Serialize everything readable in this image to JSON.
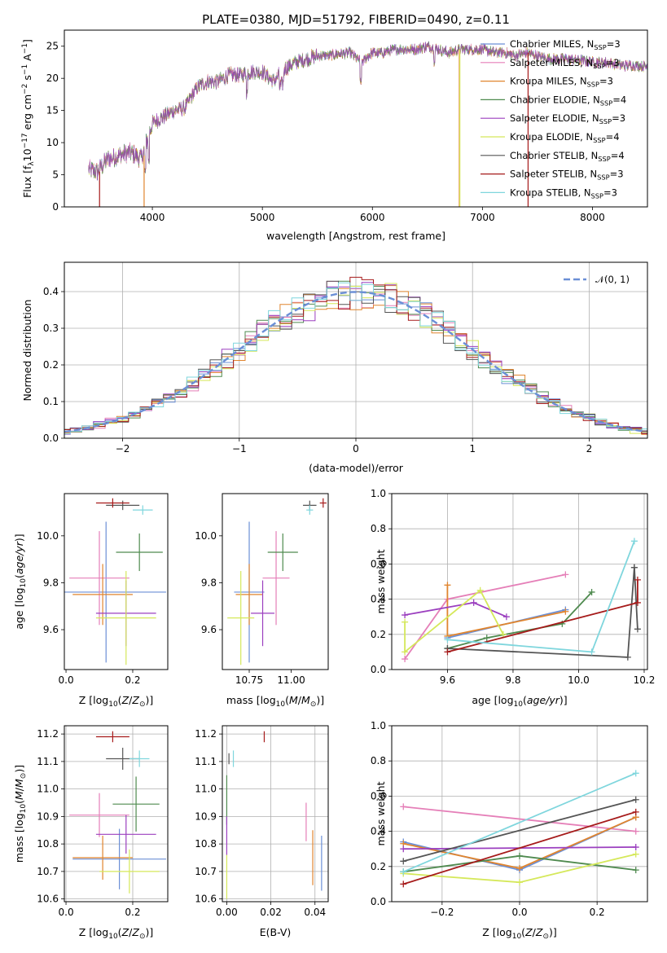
{
  "figure": {
    "title": "PLATE=0380, MJD=51792, FIBERID=0490, z=0.11",
    "colors": {
      "Chabrier MILES": "#6b8fd6",
      "Salpeter MILES": "#e57fb8",
      "Kroupa MILES": "#e0852f",
      "Chabrier ELODIE": "#4f8a4f",
      "Salpeter ELODIE": "#9b3fbf",
      "Kroupa ELODIE": "#d5e85a",
      "Chabrier STELIB": "#555555",
      "Salpeter STELIB": "#a61b1b",
      "Kroupa STELIB": "#7fd6dd"
    }
  },
  "chart_data": [
    {
      "id": "spectrum",
      "type": "line",
      "xlabel": "wavelength [Angstrom, rest frame]",
      "ylabel": "Flux [f_λ10^-17 erg cm^-2 s^-1 A^-1]",
      "xlim": [
        3200,
        8500
      ],
      "ylim": [
        0,
        27.5
      ],
      "xticks": [
        4000,
        5000,
        6000,
        7000,
        8000
      ],
      "yticks": [
        0,
        5,
        10,
        15,
        20,
        25
      ],
      "legend": "top-right",
      "legend_entries": [
        "Chabrier MILES, N_SSP=3",
        "Salpeter MILES, N_SSP=3",
        "Kroupa MILES, N_SSP=3",
        "Chabrier ELODIE, N_SSP=4",
        "Salpeter ELODIE, N_SSP=3",
        "Kroupa ELODIE, N_SSP=4",
        "Chabrier STELIB, N_SSP=4",
        "Salpeter STELIB, N_SSP=3",
        "Kroupa STELIB, N_SSP=3"
      ],
      "envelope": {
        "x": [
          3420,
          3500,
          3600,
          3700,
          3800,
          3900,
          4000,
          4100,
          4200,
          4300,
          4400,
          4500,
          4600,
          4700,
          4800,
          4900,
          5000,
          5100,
          5200,
          5300,
          5400,
          5500,
          5600,
          5700,
          5800,
          5900,
          6000,
          6100,
          6200,
          6300,
          6400,
          6500,
          6600,
          6700,
          6800,
          6900,
          7000,
          7100,
          7200,
          7300,
          7400,
          7500,
          7600,
          7700,
          7800,
          7900,
          8000,
          8100,
          8200,
          8300,
          8400,
          8500
        ],
        "y": [
          5.8,
          5.5,
          7.5,
          8.0,
          8.5,
          7.5,
          13.0,
          14.0,
          15.0,
          15.5,
          18.5,
          19.5,
          19.5,
          20.5,
          20.5,
          21.0,
          21.0,
          19.5,
          21.5,
          22.5,
          23.0,
          23.5,
          23.5,
          23.8,
          24.0,
          22.5,
          24.0,
          24.0,
          24.5,
          24.5,
          24.5,
          25.0,
          24.5,
          24.0,
          24.5,
          24.5,
          24.5,
          24.0,
          24.0,
          23.5,
          24.0,
          23.5,
          23.0,
          23.0,
          23.0,
          22.8,
          22.5,
          22.5,
          22.2,
          22.0,
          22.0,
          21.8
        ]
      }
    },
    {
      "id": "residuals",
      "type": "line",
      "xlabel": "(data-model)/error",
      "ylabel": "Normed distribution",
      "xlim": [
        -2.5,
        2.5
      ],
      "ylim": [
        0,
        0.48
      ],
      "xticks": [
        -2,
        -1,
        0,
        1,
        2
      ],
      "yticks": [
        0.0,
        0.1,
        0.2,
        0.3,
        0.4
      ],
      "grid": true,
      "legend": "top-right",
      "legend_entries": [
        "𝒩(0, 1)"
      ]
    },
    {
      "id": "age-vs-Z",
      "type": "scatter",
      "xlabel": "Z [log10(Z/Z⊙)]",
      "ylabel": "age [log10(age/yr)]",
      "xlim": [
        -0.005,
        0.305
      ],
      "ylim": [
        9.43,
        10.18
      ],
      "xticks": [
        0.0,
        0.2
      ],
      "yticks": [
        9.6,
        9.8,
        10.0
      ],
      "points": [
        {
          "model": "Chabrier MILES",
          "x": 0.12,
          "xerr": 0.18,
          "y": 9.76,
          "yerr": 0.3
        },
        {
          "model": "Salpeter MILES",
          "x": 0.1,
          "xerr": 0.09,
          "y": 9.82,
          "yerr": 0.2
        },
        {
          "model": "Kroupa MILES",
          "x": 0.11,
          "xerr": 0.09,
          "y": 9.75,
          "yerr": 0.13
        },
        {
          "model": "Chabrier ELODIE",
          "x": 0.22,
          "xerr": 0.07,
          "y": 9.93,
          "yerr": 0.08
        },
        {
          "model": "Salpeter ELODIE",
          "x": 0.18,
          "xerr": 0.09,
          "y": 9.67,
          "yerr": 0.14
        },
        {
          "model": "Kroupa ELODIE",
          "x": 0.18,
          "xerr": 0.09,
          "y": 9.65,
          "yerr": 0.2
        },
        {
          "model": "Chabrier STELIB",
          "x": 0.17,
          "xerr": 0.05,
          "y": 10.13,
          "yerr": 0.02
        },
        {
          "model": "Salpeter STELIB",
          "x": 0.14,
          "xerr": 0.05,
          "y": 10.14,
          "yerr": 0.02
        },
        {
          "model": "Kroupa STELIB",
          "x": 0.23,
          "xerr": 0.03,
          "y": 10.11,
          "yerr": 0.02
        }
      ]
    },
    {
      "id": "age-vs-mass",
      "type": "scatter",
      "xlabel": "mass [log10(M/M⊙)]",
      "ylabel": "",
      "xlim": [
        10.59,
        11.22
      ],
      "ylim": [
        9.43,
        10.18
      ],
      "xticks": [
        10.75,
        11.0
      ],
      "yticks": [
        9.6,
        9.8,
        10.0
      ],
      "points": [
        {
          "model": "Chabrier MILES",
          "x": 10.75,
          "xerr": 0.09,
          "y": 9.76,
          "yerr": 0.3
        },
        {
          "model": "Salpeter MILES",
          "x": 10.91,
          "xerr": 0.08,
          "y": 9.82,
          "yerr": 0.2
        },
        {
          "model": "Kroupa MILES",
          "x": 10.75,
          "xerr": 0.08,
          "y": 9.75,
          "yerr": 0.13
        },
        {
          "model": "Chabrier ELODIE",
          "x": 10.95,
          "xerr": 0.09,
          "y": 9.93,
          "yerr": 0.08
        },
        {
          "model": "Salpeter ELODIE",
          "x": 10.83,
          "xerr": 0.07,
          "y": 9.67,
          "yerr": 0.14
        },
        {
          "model": "Kroupa ELODIE",
          "x": 10.7,
          "xerr": 0.08,
          "y": 9.65,
          "yerr": 0.2
        },
        {
          "model": "Chabrier STELIB",
          "x": 11.11,
          "xerr": 0.04,
          "y": 10.13,
          "yerr": 0.02
        },
        {
          "model": "Salpeter STELIB",
          "x": 11.19,
          "xerr": 0.02,
          "y": 10.14,
          "yerr": 0.02
        },
        {
          "model": "Kroupa STELIB",
          "x": 11.11,
          "xerr": 0.02,
          "y": 10.11,
          "yerr": 0.02
        }
      ]
    },
    {
      "id": "weight-vs-age",
      "type": "line",
      "xlabel": "age [log10(age/yr)]",
      "ylabel": "mass weight",
      "xlim": [
        9.43,
        10.21
      ],
      "ylim": [
        0,
        1
      ],
      "xticks": [
        9.6,
        9.8,
        10.0,
        10.2
      ],
      "yticks": [
        0.0,
        0.2,
        0.4,
        0.6,
        0.8,
        1.0
      ],
      "grid": true,
      "series": [
        {
          "model": "Chabrier MILES",
          "x": [
            9.6,
            9.96
          ],
          "y": [
            0.18,
            0.34
          ]
        },
        {
          "model": "Salpeter MILES",
          "x": [
            9.47,
            9.6,
            9.96
          ],
          "y": [
            0.06,
            0.4,
            0.54
          ]
        },
        {
          "model": "Kroupa MILES",
          "x": [
            9.6,
            9.6,
            9.96
          ],
          "y": [
            0.48,
            0.19,
            0.33
          ]
        },
        {
          "model": "Chabrier ELODIE",
          "x": [
            9.6,
            9.72,
            9.95,
            10.04
          ],
          "y": [
            0.12,
            0.18,
            0.26,
            0.44
          ]
        },
        {
          "model": "Salpeter ELODIE",
          "x": [
            9.47,
            9.68,
            9.78
          ],
          "y": [
            0.31,
            0.38,
            0.3
          ]
        },
        {
          "model": "Kroupa ELODIE",
          "x": [
            9.47,
            9.47,
            9.7,
            9.77
          ],
          "y": [
            0.27,
            0.1,
            0.45,
            0.2
          ]
        },
        {
          "model": "Chabrier STELIB",
          "x": [
            9.6,
            10.15,
            10.17,
            10.18,
            10.17
          ],
          "y": [
            0.12,
            0.07,
            0.58,
            0.23,
            0.58
          ]
        },
        {
          "model": "Salpeter STELIB",
          "x": [
            9.6,
            10.18,
            10.18
          ],
          "y": [
            0.1,
            0.38,
            0.51
          ]
        },
        {
          "model": "Kroupa STELIB",
          "x": [
            9.6,
            10.04,
            10.17
          ],
          "y": [
            0.17,
            0.1,
            0.73
          ]
        }
      ]
    },
    {
      "id": "mass-vs-Z",
      "type": "scatter",
      "xlabel": "Z [log10(Z/Z⊙)]",
      "ylabel": "mass [log10(M/M⊙)]",
      "xlim": [
        -0.005,
        0.305
      ],
      "ylim": [
        10.59,
        11.23
      ],
      "xticks": [
        0.0,
        0.2
      ],
      "yticks": [
        10.6,
        10.7,
        10.8,
        10.9,
        11.0,
        11.1,
        11.2
      ],
      "grid": true,
      "points": [
        {
          "model": "Chabrier MILES",
          "x": 0.16,
          "xerr": 0.14,
          "y": 10.745,
          "yerr": 0.11
        },
        {
          "model": "Salpeter MILES",
          "x": 0.1,
          "xerr": 0.09,
          "y": 10.905,
          "yerr": 0.08
        },
        {
          "model": "Kroupa MILES",
          "x": 0.11,
          "xerr": 0.09,
          "y": 10.75,
          "yerr": 0.08
        },
        {
          "model": "Chabrier ELODIE",
          "x": 0.21,
          "xerr": 0.07,
          "y": 10.945,
          "yerr": 0.1
        },
        {
          "model": "Salpeter ELODIE",
          "x": 0.18,
          "xerr": 0.09,
          "y": 10.835,
          "yerr": 0.07
        },
        {
          "model": "Kroupa ELODIE",
          "x": 0.19,
          "xerr": 0.09,
          "y": 10.7,
          "yerr": 0.08
        },
        {
          "model": "Chabrier STELIB",
          "x": 0.17,
          "xerr": 0.05,
          "y": 11.11,
          "yerr": 0.04
        },
        {
          "model": "Salpeter STELIB",
          "x": 0.14,
          "xerr": 0.05,
          "y": 11.19,
          "yerr": 0.02
        },
        {
          "model": "Kroupa STELIB",
          "x": 0.22,
          "xerr": 0.03,
          "y": 11.11,
          "yerr": 0.03
        }
      ]
    },
    {
      "id": "mass-vs-EBV",
      "type": "scatter",
      "xlabel": "E(B-V)",
      "ylabel": "",
      "xlim": [
        -0.002,
        0.046
      ],
      "ylim": [
        10.59,
        11.23
      ],
      "xticks": [
        0.0,
        0.02,
        0.04
      ],
      "yticks": [
        10.6,
        10.7,
        10.8,
        10.9,
        11.0,
        11.1,
        11.2
      ],
      "grid": true,
      "points": [
        {
          "model": "Chabrier MILES",
          "x": 0.043,
          "xerr": 0,
          "y": 10.73,
          "yerr": 0.1
        },
        {
          "model": "Salpeter MILES",
          "x": 0.036,
          "xerr": 0,
          "y": 10.88,
          "yerr": 0.07
        },
        {
          "model": "Kroupa MILES",
          "x": 0.039,
          "xerr": 0,
          "y": 10.75,
          "yerr": 0.1
        },
        {
          "model": "Chabrier ELODIE",
          "x": 0.0,
          "xerr": 0,
          "y": 10.96,
          "yerr": 0.09
        },
        {
          "model": "Salpeter ELODIE",
          "x": 0.0,
          "xerr": 0,
          "y": 10.83,
          "yerr": 0.07
        },
        {
          "model": "Kroupa ELODIE",
          "x": 0.0,
          "xerr": 0,
          "y": 10.68,
          "yerr": 0.08
        },
        {
          "model": "Chabrier STELIB",
          "x": 0.001,
          "xerr": 0,
          "y": 11.11,
          "yerr": 0.02
        },
        {
          "model": "Salpeter STELIB",
          "x": 0.017,
          "xerr": 0,
          "y": 11.19,
          "yerr": 0.02
        },
        {
          "model": "Kroupa STELIB",
          "x": 0.003,
          "xerr": 0,
          "y": 11.11,
          "yerr": 0.03
        }
      ]
    },
    {
      "id": "weight-vs-Z",
      "type": "line",
      "xlabel": "Z [log10(Z/Z⊙)]",
      "ylabel": "mass weight",
      "xlim": [
        -0.33,
        0.33
      ],
      "ylim": [
        0,
        1
      ],
      "xticks": [
        -0.2,
        0.0,
        0.2
      ],
      "yticks": [
        0.0,
        0.2,
        0.4,
        0.6,
        0.8,
        1.0
      ],
      "grid": true,
      "series": [
        {
          "model": "Chabrier MILES",
          "x": [
            -0.3,
            0.0,
            0.3
          ],
          "y": [
            0.34,
            0.18,
            0.48
          ]
        },
        {
          "model": "Salpeter MILES",
          "x": [
            -0.3,
            0.3
          ],
          "y": [
            0.54,
            0.4
          ]
        },
        {
          "model": "Kroupa MILES",
          "x": [
            -0.3,
            0.0,
            0.3
          ],
          "y": [
            0.33,
            0.19,
            0.48
          ]
        },
        {
          "model": "Chabrier ELODIE",
          "x": [
            -0.3,
            0.0,
            0.3
          ],
          "y": [
            0.17,
            0.26,
            0.18
          ]
        },
        {
          "model": "Salpeter ELODIE",
          "x": [
            -0.3,
            0.3
          ],
          "y": [
            0.3,
            0.31
          ]
        },
        {
          "model": "Kroupa ELODIE",
          "x": [
            -0.3,
            0.0,
            0.3
          ],
          "y": [
            0.16,
            0.11,
            0.27
          ]
        },
        {
          "model": "Chabrier STELIB",
          "x": [
            -0.3,
            0.3
          ],
          "y": [
            0.23,
            0.58
          ]
        },
        {
          "model": "Salpeter STELIB",
          "x": [
            -0.3,
            0.3
          ],
          "y": [
            0.1,
            0.51
          ]
        },
        {
          "model": "Kroupa STELIB",
          "x": [
            -0.3,
            0.3
          ],
          "y": [
            0.17,
            0.73
          ]
        }
      ]
    }
  ]
}
